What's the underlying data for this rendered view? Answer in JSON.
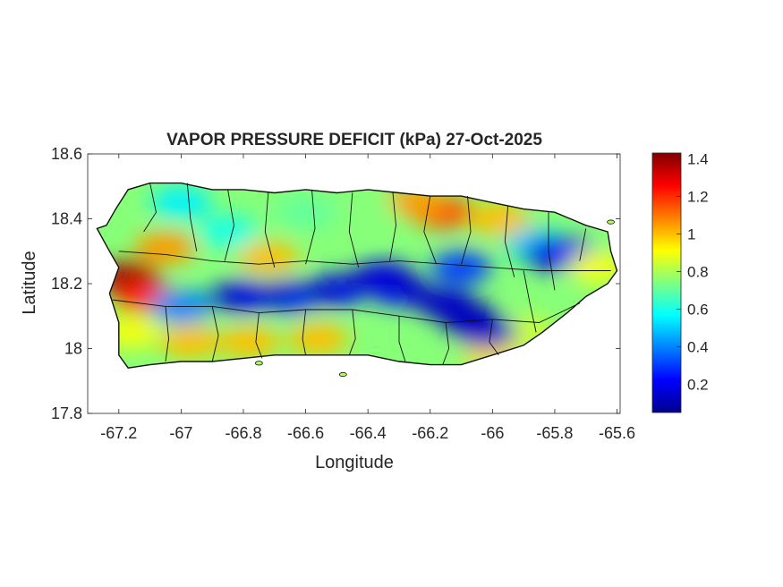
{
  "chart_data": {
    "type": "heatmap",
    "title": "VAPOR PRESSURE DEFICIT (kPa) 27-Oct-2025",
    "xlabel": "Longitude",
    "ylabel": "Latitude",
    "xlim": [
      -67.3,
      -65.59
    ],
    "ylim": [
      17.8,
      18.6
    ],
    "xticks": [
      -67.2,
      -67,
      -66.8,
      -66.6,
      -66.4,
      -66.2,
      -66,
      -65.8,
      -65.6
    ],
    "xtick_labels": [
      "-67.2",
      "-67",
      "-66.8",
      "-66.6",
      "-66.4",
      "-66.2",
      "-66",
      "-65.8",
      "-65.6"
    ],
    "yticks": [
      17.8,
      18,
      18.2,
      18.4,
      18.6
    ],
    "ytick_labels": [
      "17.8",
      "18",
      "18.2",
      "18.4",
      "18.6"
    ],
    "grid": false,
    "colormap": "jet",
    "colorbar": {
      "label": "",
      "range": [
        0.05,
        1.43
      ],
      "ticks": [
        0.2,
        0.4,
        0.6,
        0.8,
        1,
        1.2,
        1.4
      ],
      "tick_labels": [
        "0.2",
        "0.4",
        "0.6",
        "0.8",
        "1",
        "1.2",
        "1.4"
      ],
      "stops": [
        "#00008f",
        "#0000ff",
        "#0080ff",
        "#00ffff",
        "#80ff80",
        "#ffff00",
        "#ff8000",
        "#ff0000",
        "#800000"
      ]
    },
    "features": [
      {
        "lon": -67.17,
        "lat": 18.22,
        "value": 1.4
      },
      {
        "lon": -67.12,
        "lat": 18.16,
        "value": 1.2
      },
      {
        "lon": -67.05,
        "lat": 18.31,
        "value": 1.05
      },
      {
        "lon": -67.16,
        "lat": 18.05,
        "value": 0.9
      },
      {
        "lon": -66.97,
        "lat": 18.02,
        "value": 1.0
      },
      {
        "lon": -66.78,
        "lat": 18.02,
        "value": 1.0
      },
      {
        "lon": -66.56,
        "lat": 18.03,
        "value": 1.0
      },
      {
        "lon": -66.16,
        "lat": 18.42,
        "value": 1.15
      },
      {
        "lon": -66.25,
        "lat": 18.45,
        "value": 1.05
      },
      {
        "lon": -65.98,
        "lat": 18.4,
        "value": 1.0
      },
      {
        "lon": -66.0,
        "lat": 17.98,
        "value": 0.95
      },
      {
        "lon": -65.9,
        "lat": 18.05,
        "value": 0.85
      },
      {
        "lon": -66.72,
        "lat": 18.28,
        "value": 1.0
      },
      {
        "lon": -67.0,
        "lat": 18.45,
        "value": 0.55
      },
      {
        "lon": -66.85,
        "lat": 18.36,
        "value": 0.6
      },
      {
        "lon": -65.86,
        "lat": 18.32,
        "value": 0.5
      },
      {
        "lon": -66.5,
        "lat": 18.18,
        "value": 0.25
      },
      {
        "lon": -66.35,
        "lat": 18.22,
        "value": 0.2
      },
      {
        "lon": -66.3,
        "lat": 18.18,
        "value": 0.25
      },
      {
        "lon": -66.15,
        "lat": 18.14,
        "value": 0.15
      },
      {
        "lon": -66.07,
        "lat": 18.09,
        "value": 0.1
      },
      {
        "lon": -66.02,
        "lat": 18.05,
        "value": 0.15
      },
      {
        "lon": -66.1,
        "lat": 18.25,
        "value": 0.3
      },
      {
        "lon": -66.8,
        "lat": 18.16,
        "value": 0.25
      },
      {
        "lon": -66.65,
        "lat": 18.16,
        "value": 0.3
      },
      {
        "lon": -67.0,
        "lat": 18.13,
        "value": 0.4
      },
      {
        "lon": -65.8,
        "lat": 18.29,
        "value": 0.15
      },
      {
        "lon": -65.76,
        "lat": 18.29,
        "value": 0.2
      },
      {
        "lon": -65.66,
        "lat": 18.25,
        "value": 0.9
      },
      {
        "lon": -66.4,
        "lat": 18.42,
        "value": 0.75
      },
      {
        "lon": -66.6,
        "lat": 18.42,
        "value": 0.7
      }
    ]
  }
}
